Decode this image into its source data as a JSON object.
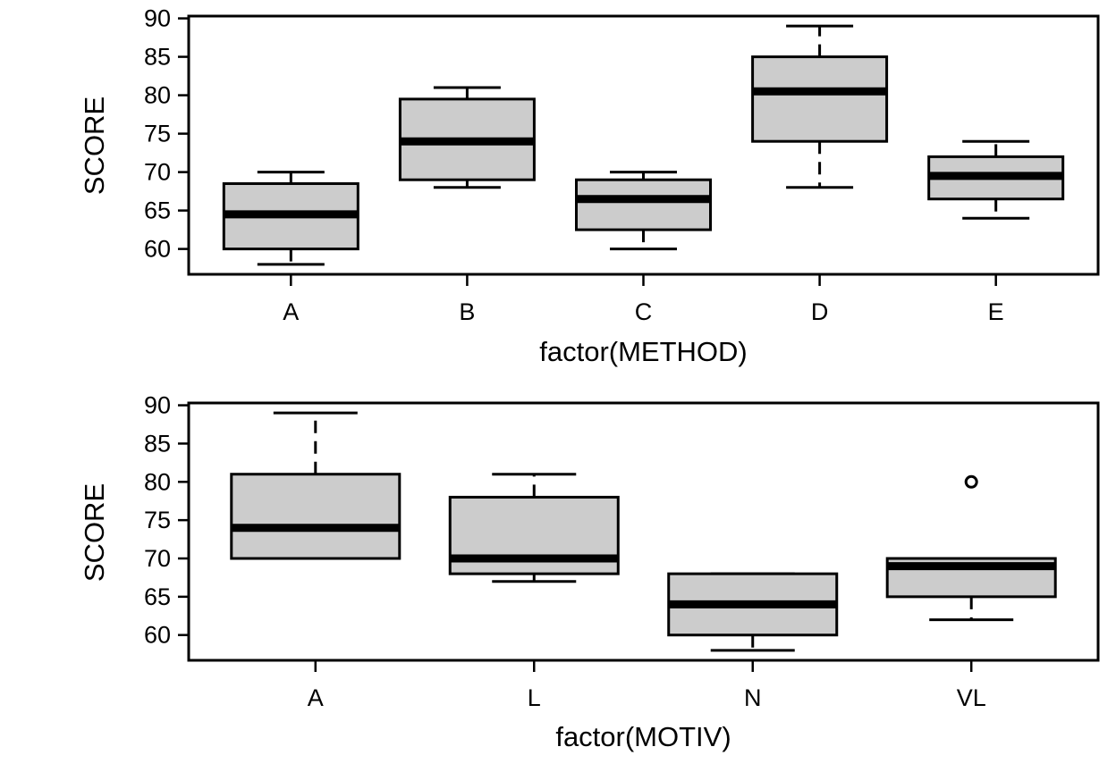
{
  "chart_data": [
    {
      "type": "boxplot",
      "xlabel": "factor(METHOD)",
      "ylabel": "SCORE",
      "y_ticks": [
        60,
        65,
        70,
        75,
        80,
        85,
        90
      ],
      "ylim": [
        56.7,
        90.3
      ],
      "grid": false,
      "categories": [
        "A",
        "B",
        "C",
        "D",
        "E"
      ],
      "boxes": [
        {
          "category": "A",
          "whisker_low": 58,
          "q1": 60,
          "median": 64.5,
          "q3": 68.5,
          "whisker_high": 70,
          "outliers": []
        },
        {
          "category": "B",
          "whisker_low": 68,
          "q1": 69,
          "median": 74,
          "q3": 79.5,
          "whisker_high": 81,
          "outliers": []
        },
        {
          "category": "C",
          "whisker_low": 60,
          "q1": 62.5,
          "median": 66.5,
          "q3": 69,
          "whisker_high": 70,
          "outliers": []
        },
        {
          "category": "D",
          "whisker_low": 68,
          "q1": 74,
          "median": 80.5,
          "q3": 85,
          "whisker_high": 89,
          "outliers": []
        },
        {
          "category": "E",
          "whisker_low": 64,
          "q1": 66.5,
          "median": 69.5,
          "q3": 72,
          "whisker_high": 74,
          "outliers": []
        }
      ]
    },
    {
      "type": "boxplot",
      "xlabel": "factor(MOTIV)",
      "ylabel": "SCORE",
      "y_ticks": [
        60,
        65,
        70,
        75,
        80,
        85,
        90
      ],
      "ylim": [
        56.7,
        90.3
      ],
      "grid": false,
      "categories": [
        "A",
        "L",
        "N",
        "VL"
      ],
      "boxes": [
        {
          "category": "A",
          "whisker_low": 70,
          "q1": 70,
          "median": 74,
          "q3": 81,
          "whisker_high": 89,
          "outliers": []
        },
        {
          "category": "L",
          "whisker_low": 67,
          "q1": 68,
          "median": 70,
          "q3": 78,
          "whisker_high": 81,
          "outliers": []
        },
        {
          "category": "N",
          "whisker_low": 58,
          "q1": 60,
          "median": 64,
          "q3": 68,
          "whisker_high": 68,
          "outliers": []
        },
        {
          "category": "VL",
          "whisker_low": 62,
          "q1": 65,
          "median": 69,
          "q3": 70,
          "whisker_high": 70,
          "outliers": [
            80
          ]
        }
      ]
    }
  ],
  "colors": {
    "box_fill": "#cccccc",
    "stroke": "#000000",
    "background": "#ffffff"
  }
}
